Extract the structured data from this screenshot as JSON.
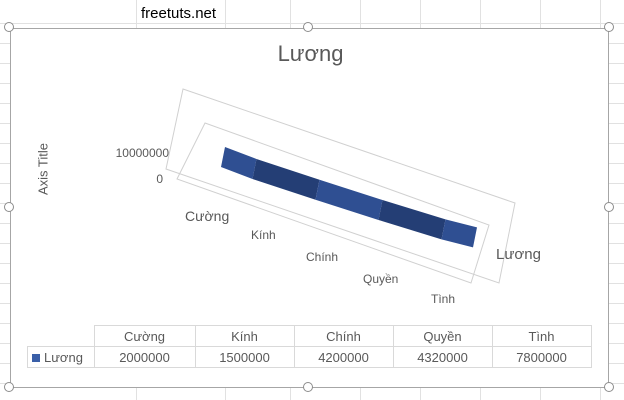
{
  "sheet": {
    "cell_text": "freetuts.net"
  },
  "chart": {
    "title": "Lương",
    "axis_title": "Axis Title",
    "y_ticks": [
      "10000000",
      "0"
    ],
    "depth_label": "Lương",
    "series_color": "#2f4f92",
    "series_color_dark": "#243e75"
  },
  "chart_data": {
    "type": "line",
    "categories": [
      "Cường",
      "Kính",
      "Chính",
      "Quyền",
      "Tình"
    ],
    "series": [
      {
        "name": "Lương",
        "values": [
          2000000,
          1500000,
          4200000,
          4320000,
          7800000
        ]
      }
    ],
    "ylabel": "Axis Title",
    "ylim": [
      0,
      10000000
    ],
    "legend": "data-table",
    "grid": false
  },
  "table": {
    "headers": [
      "Cường",
      "Kính",
      "Chính",
      "Quyền",
      "Tình"
    ],
    "row_label": "Lương",
    "values": [
      "2000000",
      "1500000",
      "4200000",
      "4320000",
      "7800000"
    ]
  }
}
